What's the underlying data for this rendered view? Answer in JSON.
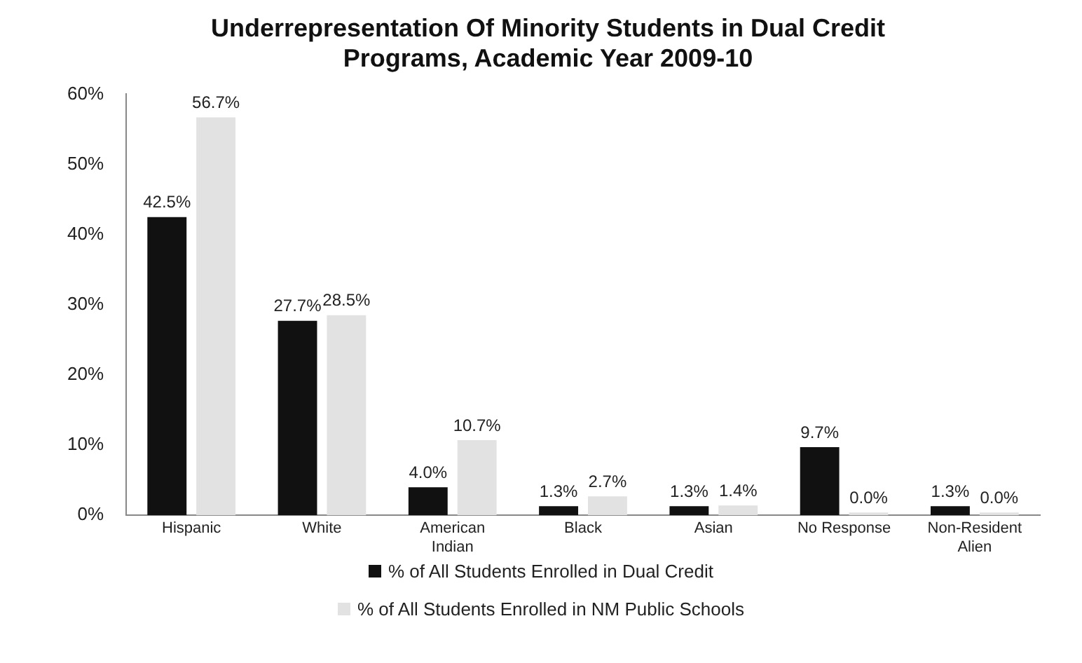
{
  "chart_data": {
    "type": "bar",
    "title": "Underrepresentation Of Minority Students in Dual Credit Programs, Academic Year 2009-10",
    "categories": [
      "Hispanic",
      "White",
      "American Indian",
      "Black",
      "Asian",
      "No Response",
      "Non-Resident Alien"
    ],
    "series": [
      {
        "name": "% of All Students Enrolled in Dual Credit",
        "color": "#111111",
        "values": [
          42.5,
          27.7,
          4.0,
          1.3,
          1.3,
          9.7,
          1.3
        ],
        "value_labels": [
          "42.5%",
          "27.7%",
          "4.0%",
          "1.3%",
          "1.3%",
          "9.7%",
          "1.3%"
        ]
      },
      {
        "name": "% of All Students Enrolled in NM Public Schools",
        "color": "#e2e2e2",
        "values": [
          56.7,
          28.5,
          10.7,
          2.7,
          1.4,
          0.0,
          0.0
        ],
        "value_labels": [
          "56.7%",
          "28.5%",
          "10.7%",
          "2.7%",
          "1.4%",
          "0.0%",
          "0.0%"
        ]
      }
    ],
    "ylim": [
      0,
      60
    ],
    "yticks": [
      {
        "value": 0,
        "label": "0%"
      },
      {
        "value": 10,
        "label": "10%"
      },
      {
        "value": 20,
        "label": "20%"
      },
      {
        "value": 30,
        "label": "30%"
      },
      {
        "value": 40,
        "label": "40%"
      },
      {
        "value": 50,
        "label": "50%"
      },
      {
        "value": 60,
        "label": "60%"
      }
    ],
    "grid": false,
    "legend": "bottom"
  }
}
